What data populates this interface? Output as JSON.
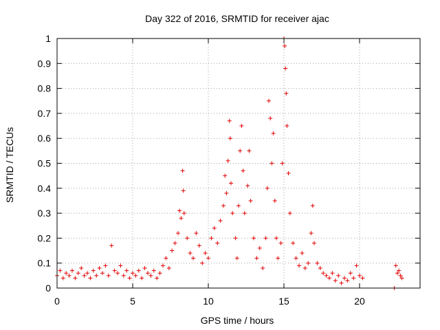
{
  "chart_data": {
    "type": "scatter",
    "title": "Day 322 of 2016, SRMTID for receiver ajac",
    "xlabel": "GPS time / hours",
    "ylabel": "SRMTID / TECUs",
    "xlim": [
      0,
      24
    ],
    "ylim": [
      0,
      1
    ],
    "x_ticks": [
      "0",
      "5",
      "10",
      "15",
      "20"
    ],
    "x_tick_values": [
      0,
      5,
      10,
      15,
      20
    ],
    "y_ticks": [
      "0",
      "0.1",
      "0.2",
      "0.3",
      "0.4",
      "0.5",
      "0.6",
      "0.7",
      "0.8",
      "0.9",
      "1"
    ],
    "y_tick_values": [
      0,
      0.1,
      0.2,
      0.3,
      0.4,
      0.5,
      0.6,
      0.7,
      0.8,
      0.9,
      1.0
    ],
    "grid": true,
    "marker": "+",
    "series": [
      {
        "name": "SRMTID",
        "color": "#e00000",
        "points": [
          [
            0.0,
            0.05
          ],
          [
            0.2,
            0.07
          ],
          [
            0.4,
            0.04
          ],
          [
            0.6,
            0.06
          ],
          [
            0.8,
            0.05
          ],
          [
            1.0,
            0.07
          ],
          [
            1.2,
            0.04
          ],
          [
            1.4,
            0.06
          ],
          [
            1.6,
            0.08
          ],
          [
            1.8,
            0.05
          ],
          [
            2.0,
            0.06
          ],
          [
            2.2,
            0.04
          ],
          [
            2.4,
            0.07
          ],
          [
            2.6,
            0.05
          ],
          [
            2.8,
            0.08
          ],
          [
            3.0,
            0.06
          ],
          [
            3.2,
            0.09
          ],
          [
            3.4,
            0.05
          ],
          [
            3.6,
            0.17
          ],
          [
            3.8,
            0.07
          ],
          [
            4.0,
            0.06
          ],
          [
            4.2,
            0.09
          ],
          [
            4.4,
            0.05
          ],
          [
            4.6,
            0.07
          ],
          [
            4.8,
            0.04
          ],
          [
            5.0,
            0.06
          ],
          [
            5.2,
            0.05
          ],
          [
            5.4,
            0.07
          ],
          [
            5.6,
            0.04
          ],
          [
            5.8,
            0.08
          ],
          [
            6.0,
            0.06
          ],
          [
            6.2,
            0.05
          ],
          [
            6.4,
            0.07
          ],
          [
            6.6,
            0.04
          ],
          [
            6.8,
            0.06
          ],
          [
            7.0,
            0.09
          ],
          [
            7.2,
            0.12
          ],
          [
            7.4,
            0.08
          ],
          [
            7.6,
            0.15
          ],
          [
            7.8,
            0.18
          ],
          [
            8.0,
            0.22
          ],
          [
            8.1,
            0.31
          ],
          [
            8.2,
            0.28
          ],
          [
            8.3,
            0.47
          ],
          [
            8.35,
            0.39
          ],
          [
            8.4,
            0.3
          ],
          [
            8.6,
            0.2
          ],
          [
            8.8,
            0.14
          ],
          [
            9.0,
            0.12
          ],
          [
            9.2,
            0.22
          ],
          [
            9.4,
            0.17
          ],
          [
            9.6,
            0.1
          ],
          [
            9.8,
            0.14
          ],
          [
            10.0,
            0.12
          ],
          [
            10.2,
            0.2
          ],
          [
            10.4,
            0.24
          ],
          [
            10.6,
            0.18
          ],
          [
            10.8,
            0.27
          ],
          [
            11.0,
            0.33
          ],
          [
            11.1,
            0.45
          ],
          [
            11.2,
            0.38
          ],
          [
            11.3,
            0.51
          ],
          [
            11.4,
            0.67
          ],
          [
            11.45,
            0.6
          ],
          [
            11.5,
            0.42
          ],
          [
            11.6,
            0.3
          ],
          [
            11.8,
            0.2
          ],
          [
            11.9,
            0.12
          ],
          [
            12.0,
            0.33
          ],
          [
            12.1,
            0.55
          ],
          [
            12.2,
            0.65
          ],
          [
            12.3,
            0.47
          ],
          [
            12.4,
            0.3
          ],
          [
            12.6,
            0.41
          ],
          [
            12.7,
            0.55
          ],
          [
            12.8,
            0.35
          ],
          [
            13.0,
            0.2
          ],
          [
            13.2,
            0.12
          ],
          [
            13.4,
            0.16
          ],
          [
            13.6,
            0.08
          ],
          [
            13.8,
            0.2
          ],
          [
            13.9,
            0.4
          ],
          [
            14.0,
            0.75
          ],
          [
            14.1,
            0.68
          ],
          [
            14.2,
            0.5
          ],
          [
            14.3,
            0.62
          ],
          [
            14.4,
            0.35
          ],
          [
            14.5,
            0.2
          ],
          [
            14.6,
            0.12
          ],
          [
            14.8,
            0.18
          ],
          [
            14.9,
            0.5
          ],
          [
            15.0,
            1.0
          ],
          [
            15.05,
            0.97
          ],
          [
            15.1,
            0.88
          ],
          [
            15.15,
            0.78
          ],
          [
            15.2,
            0.65
          ],
          [
            15.3,
            0.46
          ],
          [
            15.4,
            0.3
          ],
          [
            15.6,
            0.18
          ],
          [
            15.8,
            0.12
          ],
          [
            16.0,
            0.09
          ],
          [
            16.2,
            0.14
          ],
          [
            16.4,
            0.08
          ],
          [
            16.6,
            0.1
          ],
          [
            16.8,
            0.22
          ],
          [
            16.9,
            0.33
          ],
          [
            17.0,
            0.18
          ],
          [
            17.2,
            0.1
          ],
          [
            17.4,
            0.08
          ],
          [
            17.6,
            0.06
          ],
          [
            17.8,
            0.05
          ],
          [
            18.0,
            0.04
          ],
          [
            18.2,
            0.06
          ],
          [
            18.4,
            0.03
          ],
          [
            18.6,
            0.05
          ],
          [
            18.8,
            0.02
          ],
          [
            19.0,
            0.04
          ],
          [
            19.2,
            0.03
          ],
          [
            19.4,
            0.06
          ],
          [
            19.6,
            0.04
          ],
          [
            19.8,
            0.09
          ],
          [
            20.0,
            0.05
          ],
          [
            20.2,
            0.04
          ],
          [
            22.3,
            0.0
          ],
          [
            22.4,
            0.09
          ],
          [
            22.5,
            0.06
          ],
          [
            22.6,
            0.07
          ],
          [
            22.7,
            0.05
          ],
          [
            22.8,
            0.04
          ]
        ]
      }
    ]
  }
}
